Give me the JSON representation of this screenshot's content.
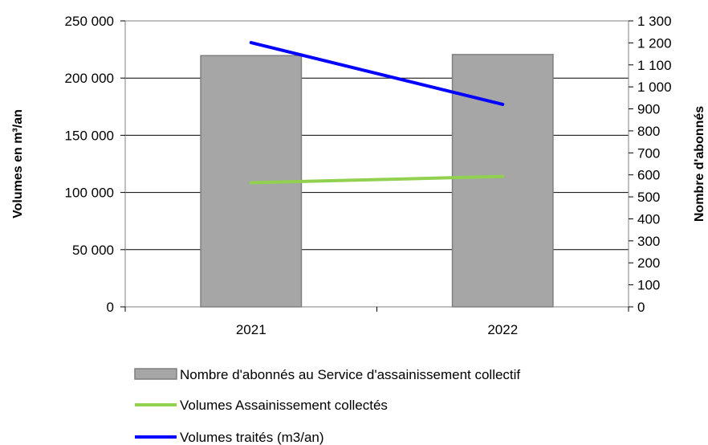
{
  "chart_data": {
    "type": "bar",
    "categories": [
      "2021",
      "2022"
    ],
    "series": [
      {
        "name": "Nombre d'abonnés au Service d'assainissement collectif",
        "kind": "bar",
        "axis": "right",
        "values": [
          1142,
          1147
        ],
        "color": "#a6a6a6"
      },
      {
        "name": "Volumes Assainissement collectés",
        "kind": "line",
        "axis": "left",
        "values": [
          108500,
          114000
        ],
        "color": "#92d050"
      },
      {
        "name": "Volumes traités (m3/an)",
        "kind": "line",
        "axis": "left",
        "values": [
          231000,
          177000
        ],
        "color": "#0000ff"
      }
    ],
    "ylabel": "Volumes en m³/an",
    "y2label": "Nombre d'abonnés",
    "ylim": [
      0,
      250000
    ],
    "y2lim": [
      0,
      1300
    ],
    "yticks": [
      0,
      50000,
      100000,
      150000,
      200000,
      250000
    ],
    "y2ticks": [
      0,
      100,
      200,
      300,
      400,
      500,
      600,
      700,
      800,
      900,
      1000,
      1100,
      1200,
      1300
    ],
    "ytick_labels": [
      "0",
      "50 000",
      "100 000",
      "150 000",
      "200 000",
      "250 000"
    ],
    "y2tick_labels": [
      "0",
      "100",
      "200",
      "300",
      "400",
      "500",
      "600",
      "700",
      "800",
      "900",
      "1 000",
      "1 100",
      "1 200",
      "1 300"
    ],
    "grid": true,
    "legend_position": "bottom"
  }
}
